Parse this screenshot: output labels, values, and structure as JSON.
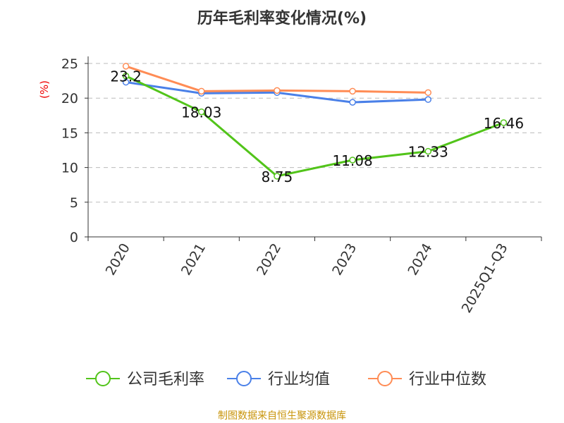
{
  "chart_data": {
    "type": "line",
    "title": "历年毛利率变化情况(%)",
    "ylabel": "(%)",
    "xlabel": "",
    "ylim": [
      0,
      25
    ],
    "yticks": [
      0,
      5,
      10,
      15,
      20,
      25
    ],
    "grid": true,
    "legend_position": "bottom",
    "categories": [
      "2020",
      "2021",
      "2022",
      "2023",
      "2024",
      "2025Q1-Q3"
    ],
    "series": [
      {
        "name": "公司毛利率",
        "color": "#52c41a",
        "values": [
          23.2,
          18.03,
          8.75,
          11.08,
          12.33,
          16.46
        ],
        "labels": [
          "23.2",
          "18.03",
          "8.75",
          "11.08",
          "12.33",
          "16.46"
        ]
      },
      {
        "name": "行业均值",
        "color": "#4a80e8",
        "values": [
          22.3,
          20.7,
          20.8,
          19.4,
          19.8,
          null
        ]
      },
      {
        "name": "行业中位数",
        "color": "#ff8c55",
        "values": [
          24.6,
          21.0,
          21.1,
          21.0,
          20.8,
          null
        ]
      }
    ]
  },
  "footer": "制图数据来自恒生聚源数据库"
}
